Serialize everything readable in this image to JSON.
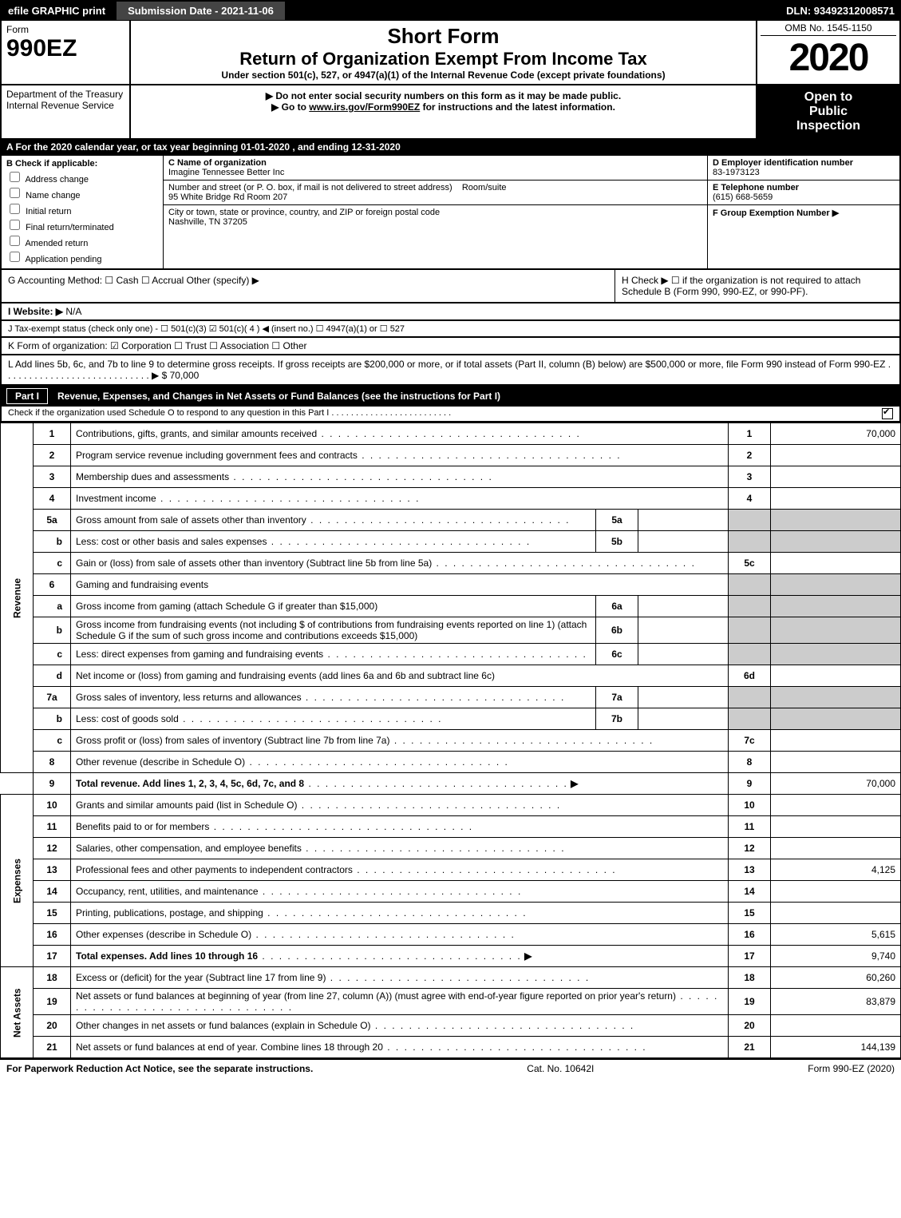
{
  "topbar": {
    "efile": "efile GRAPHIC print",
    "submission_label": "Submission Date - 2021-11-06",
    "dln": "DLN: 93492312008571"
  },
  "header": {
    "form_word": "Form",
    "form_number": "990EZ",
    "title1": "Short Form",
    "title2": "Return of Organization Exempt From Income Tax",
    "subtitle": "Under section 501(c), 527, or 4947(a)(1) of the Internal Revenue Code (except private foundations)",
    "note1": "▶ Do not enter social security numbers on this form as it may be made public.",
    "note2_prefix": "▶ Go to ",
    "note2_link": "www.irs.gov/Form990EZ",
    "note2_suffix": " for instructions and the latest information.",
    "omb": "OMB No. 1545-1150",
    "year": "2020",
    "dept": "Department of the Treasury\nInternal Revenue Service",
    "open": {
      "l1": "Open to",
      "l2": "Public",
      "l3": "Inspection"
    }
  },
  "sectionA": "A For the 2020 calendar year, or tax year beginning 01-01-2020 , and ending 12-31-2020",
  "sectionB": {
    "label": "B Check if applicable:",
    "items": [
      "Address change",
      "Name change",
      "Initial return",
      "Final return/terminated",
      "Amended return",
      "Application pending"
    ]
  },
  "org": {
    "c_label": "C Name of organization",
    "name": "Imagine Tennessee Better Inc",
    "addr_label": "Number and street (or P. O. box, if mail is not delivered to street address)",
    "room_label": "Room/suite",
    "addr": "95 White Bridge Rd Room 207",
    "city_label": "City or town, state or province, country, and ZIP or foreign postal code",
    "city": "Nashville, TN  37205"
  },
  "right_info": {
    "d_label": "D Employer identification number",
    "ein": "83-1973123",
    "e_label": "E Telephone number",
    "phone": "(615) 668-5659",
    "f_label": "F Group Exemption Number  ▶"
  },
  "rowG": "G Accounting Method:   ☐ Cash  ☐ Accrual   Other (specify) ▶",
  "rowH": "H  Check ▶  ☐  if the organization is not required to attach Schedule B (Form 990, 990-EZ, or 990-PF).",
  "rowI": {
    "label": "I Website: ▶",
    "value": "N/A"
  },
  "rowJ": "J Tax-exempt status (check only one) - ☐ 501(c)(3) ☑ 501(c)( 4 ) ◀ (insert no.) ☐ 4947(a)(1) or ☐ 527",
  "rowK": "K Form of organization:   ☑ Corporation  ☐ Trust  ☐ Association  ☐ Other",
  "rowL": "L Add lines 5b, 6c, and 7b to line 9 to determine gross receipts. If gross receipts are $200,000 or more, or if total assets (Part II, column (B) below) are $500,000 or more, file Form 990 instead of Form 990-EZ  . . . . . . . . . . . . . . . . . . . . . . . . . . . .  ▶ $ 70,000",
  "part1": {
    "tag": "Part I",
    "title": "Revenue, Expenses, and Changes in Net Assets or Fund Balances (see the instructions for Part I)",
    "subnote": "Check if the organization used Schedule O to respond to any question in this Part I . . . . . . . . . . . . . . . . . . . . . . . . .",
    "checked": true
  },
  "side_labels": {
    "revenue": "Revenue",
    "expenses": "Expenses",
    "netassets": "Net Assets"
  },
  "lines": {
    "l1": {
      "n": "1",
      "d": "Contributions, gifts, grants, and similar amounts received",
      "v": "70,000"
    },
    "l2": {
      "n": "2",
      "d": "Program service revenue including government fees and contracts",
      "v": ""
    },
    "l3": {
      "n": "3",
      "d": "Membership dues and assessments",
      "v": ""
    },
    "l4": {
      "n": "4",
      "d": "Investment income",
      "v": ""
    },
    "l5a": {
      "n": "5a",
      "d": "Gross amount from sale of assets other than inventory",
      "m": "5a",
      "mv": ""
    },
    "l5b": {
      "n": "b",
      "d": "Less: cost or other basis and sales expenses",
      "m": "5b",
      "mv": ""
    },
    "l5c": {
      "n": "c",
      "d": "Gain or (loss) from sale of assets other than inventory (Subtract line 5b from line 5a)",
      "nn": "5c",
      "v": ""
    },
    "l6": {
      "n": "6",
      "d": "Gaming and fundraising events"
    },
    "l6a": {
      "n": "a",
      "d": "Gross income from gaming (attach Schedule G if greater than $15,000)",
      "m": "6a",
      "mv": ""
    },
    "l6b": {
      "n": "b",
      "d": "Gross income from fundraising events (not including $                 of contributions from fundraising events reported on line 1) (attach Schedule G if the sum of such gross income and contributions exceeds $15,000)",
      "m": "6b",
      "mv": ""
    },
    "l6c": {
      "n": "c",
      "d": "Less: direct expenses from gaming and fundraising events",
      "m": "6c",
      "mv": ""
    },
    "l6d": {
      "n": "d",
      "d": "Net income or (loss) from gaming and fundraising events (add lines 6a and 6b and subtract line 6c)",
      "nn": "6d",
      "v": ""
    },
    "l7a": {
      "n": "7a",
      "d": "Gross sales of inventory, less returns and allowances",
      "m": "7a",
      "mv": ""
    },
    "l7b": {
      "n": "b",
      "d": "Less: cost of goods sold",
      "m": "7b",
      "mv": ""
    },
    "l7c": {
      "n": "c",
      "d": "Gross profit or (loss) from sales of inventory (Subtract line 7b from line 7a)",
      "nn": "7c",
      "v": ""
    },
    "l8": {
      "n": "8",
      "d": "Other revenue (describe in Schedule O)",
      "v": ""
    },
    "l9": {
      "n": "9",
      "d": "Total revenue. Add lines 1, 2, 3, 4, 5c, 6d, 7c, and 8",
      "v": "70,000",
      "arrow": true,
      "bold": true
    },
    "l10": {
      "n": "10",
      "d": "Grants and similar amounts paid (list in Schedule O)",
      "v": ""
    },
    "l11": {
      "n": "11",
      "d": "Benefits paid to or for members",
      "v": ""
    },
    "l12": {
      "n": "12",
      "d": "Salaries, other compensation, and employee benefits",
      "v": ""
    },
    "l13": {
      "n": "13",
      "d": "Professional fees and other payments to independent contractors",
      "v": "4,125"
    },
    "l14": {
      "n": "14",
      "d": "Occupancy, rent, utilities, and maintenance",
      "v": ""
    },
    "l15": {
      "n": "15",
      "d": "Printing, publications, postage, and shipping",
      "v": ""
    },
    "l16": {
      "n": "16",
      "d": "Other expenses (describe in Schedule O)",
      "v": "5,615"
    },
    "l17": {
      "n": "17",
      "d": "Total expenses. Add lines 10 through 16",
      "v": "9,740",
      "arrow": true,
      "bold": true
    },
    "l18": {
      "n": "18",
      "d": "Excess or (deficit) for the year (Subtract line 17 from line 9)",
      "v": "60,260"
    },
    "l19": {
      "n": "19",
      "d": "Net assets or fund balances at beginning of year (from line 27, column (A)) (must agree with end-of-year figure reported on prior year's return)",
      "v": "83,879"
    },
    "l20": {
      "n": "20",
      "d": "Other changes in net assets or fund balances (explain in Schedule O)",
      "v": ""
    },
    "l21": {
      "n": "21",
      "d": "Net assets or fund balances at end of year. Combine lines 18 through 20",
      "v": "144,139"
    }
  },
  "footer": {
    "left": "For Paperwork Reduction Act Notice, see the separate instructions.",
    "mid": "Cat. No. 10642I",
    "right": "Form 990-EZ (2020)"
  },
  "colors": {
    "black": "#000000",
    "white": "#ffffff",
    "shade": "#cccccc",
    "darkbar": "#444444"
  }
}
